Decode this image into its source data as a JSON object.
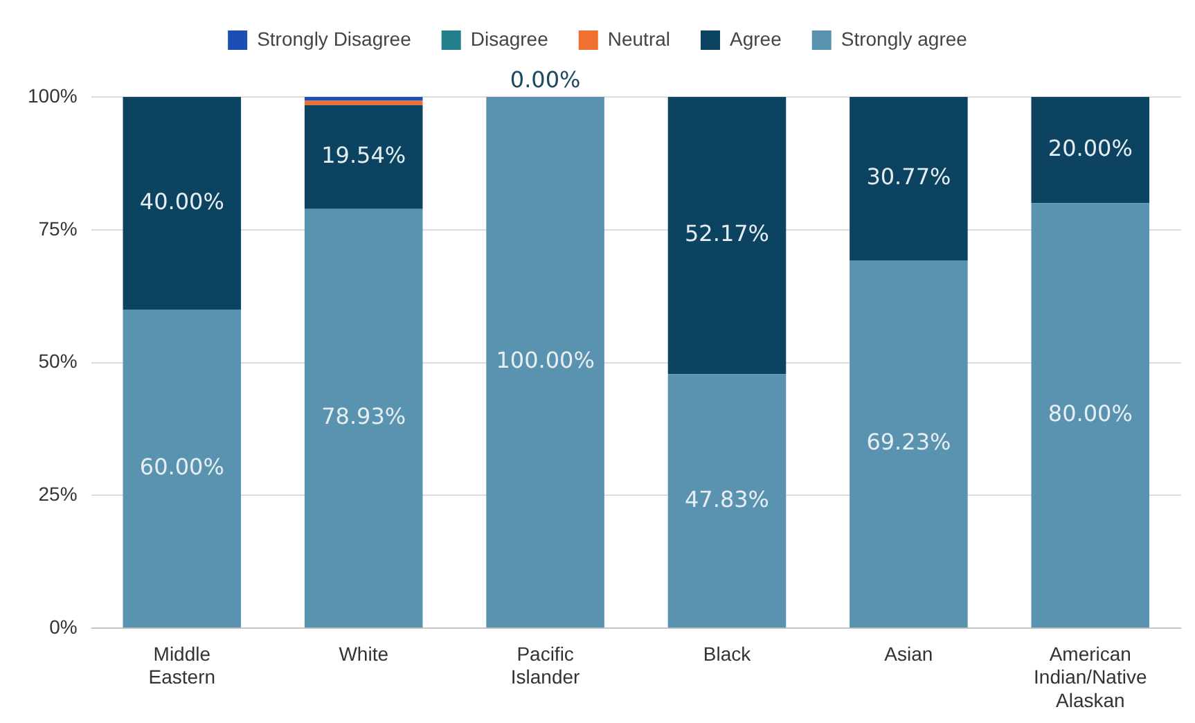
{
  "chart_data": {
    "type": "bar",
    "stacked": true,
    "categories": [
      "Middle Eastern",
      "White",
      "Pacific Islander",
      "Black",
      "Asian",
      "American Indian/Native Alaskan"
    ],
    "series": [
      {
        "name": "Strongly agree",
        "color": "#5a93b0",
        "values": [
          60,
          78.93,
          100,
          47.83,
          69.23,
          80
        ],
        "value_labels": [
          "60.00%",
          "78.93%",
          "100.00%",
          "47.83%",
          "69.23%",
          "80.00%"
        ]
      },
      {
        "name": "Agree",
        "color": "#0b4360",
        "values": [
          40,
          19.54,
          0,
          52.17,
          30.77,
          20
        ],
        "value_labels": [
          "40.00%",
          "19.54%",
          "0.00%",
          "52.17%",
          "30.77%",
          "20.00%"
        ]
      },
      {
        "name": "Neutral",
        "color": "#f07030",
        "values": [
          0,
          0.8,
          0,
          0,
          0,
          0
        ]
      },
      {
        "name": "Disagree",
        "color": "#237f8c",
        "values": [
          0,
          0,
          0,
          0,
          0,
          0
        ]
      },
      {
        "name": "Strongly Disagree",
        "color": "#1c4fb5",
        "values": [
          0,
          0.8,
          0,
          0,
          0,
          0
        ]
      }
    ],
    "ylim": [
      0,
      100
    ],
    "yticks": [
      {
        "value": 0,
        "label": "0%"
      },
      {
        "value": 25,
        "label": "25%"
      },
      {
        "value": 50,
        "label": "50%"
      },
      {
        "value": 75,
        "label": "75%"
      },
      {
        "value": 100,
        "label": "100%"
      }
    ],
    "grid": "y",
    "legend": "top"
  }
}
